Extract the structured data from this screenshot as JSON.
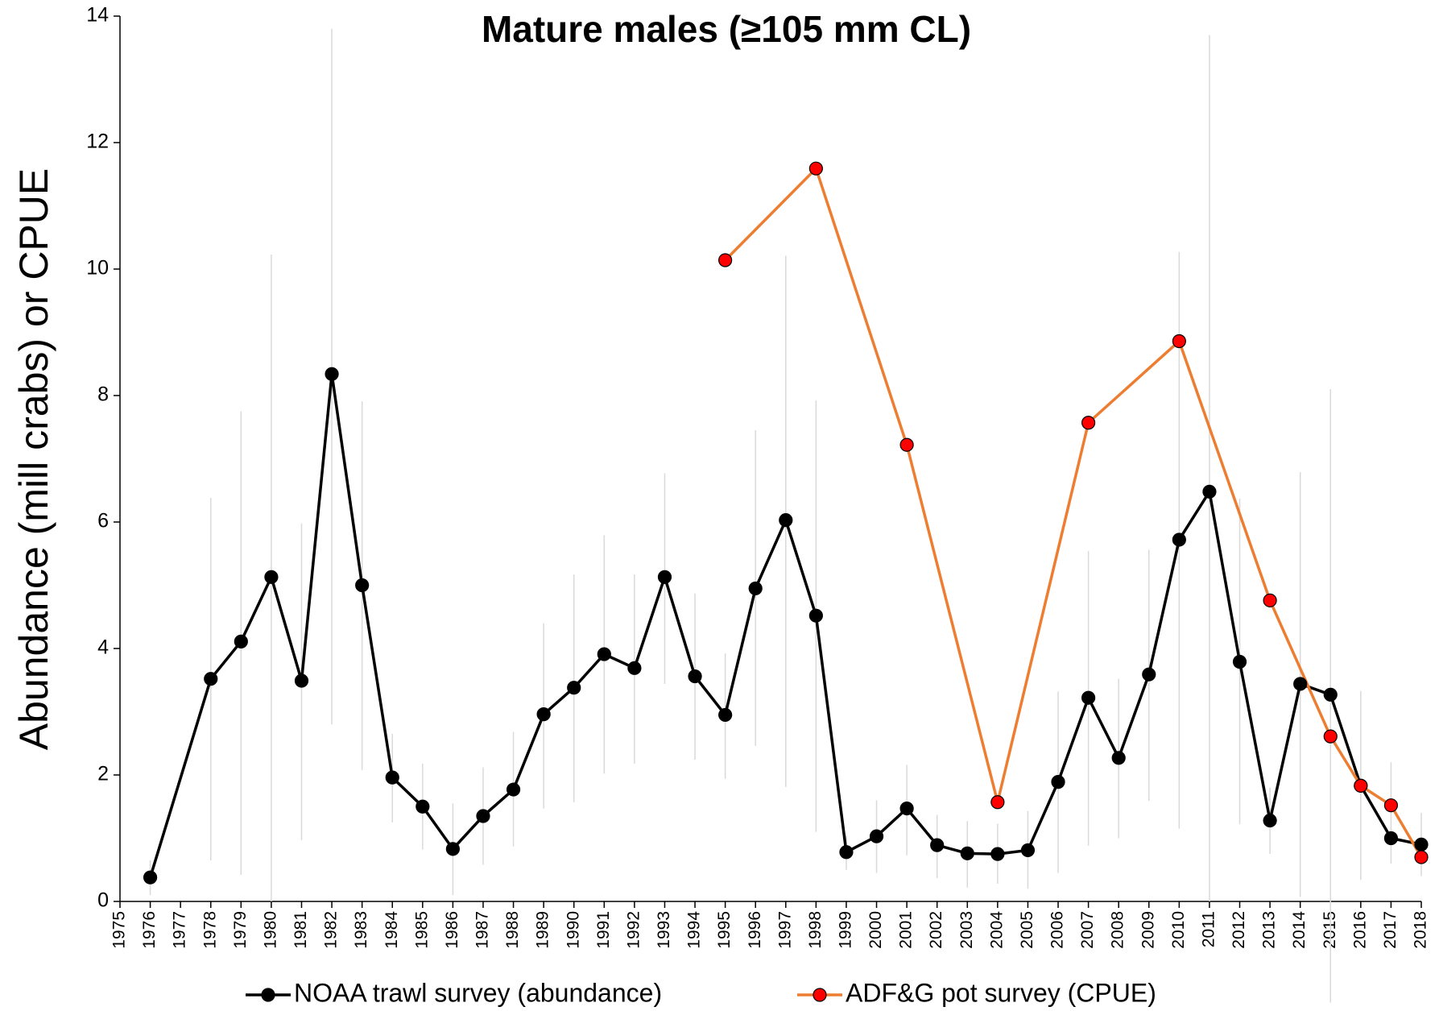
{
  "chart_data": {
    "type": "line",
    "title": "Mature males (≥105 mm CL)",
    "ylabel": "Abundance (mill crabs) or CPUE",
    "xlim": [
      1975,
      2018
    ],
    "xticks": [
      1975,
      1976,
      1977,
      1978,
      1979,
      1980,
      1981,
      1982,
      1983,
      1984,
      1985,
      1986,
      1987,
      1988,
      1989,
      1990,
      1991,
      1992,
      1993,
      1994,
      1995,
      1996,
      1997,
      1998,
      1999,
      2000,
      2001,
      2002,
      2003,
      2004,
      2005,
      2006,
      2007,
      2008,
      2009,
      2010,
      2011,
      2012,
      2013,
      2014,
      2015,
      2016,
      2017,
      2018
    ],
    "ylim": [
      0,
      14
    ],
    "yticks": [
      0,
      2,
      4,
      6,
      8,
      10,
      12,
      14
    ],
    "grid": false,
    "legend": "bottom",
    "series": [
      {
        "name": "NOAA trawl survey (abundance)",
        "color": "#000000",
        "marker_color": "#000000",
        "error_color": "#d9d9d9",
        "x": [
          1976,
          1978,
          1979,
          1980,
          1981,
          1982,
          1983,
          1984,
          1985,
          1986,
          1987,
          1988,
          1989,
          1990,
          1991,
          1992,
          1993,
          1994,
          1995,
          1996,
          1997,
          1998,
          1999,
          2000,
          2001,
          2002,
          2003,
          2004,
          2005,
          2006,
          2007,
          2008,
          2009,
          2010,
          2011,
          2012,
          2013,
          2014,
          2015,
          2016,
          2017,
          2018
        ],
        "values": [
          0.38,
          3.52,
          4.11,
          5.13,
          3.49,
          8.34,
          5.0,
          1.96,
          1.5,
          0.83,
          1.35,
          1.77,
          2.96,
          3.38,
          3.91,
          3.69,
          5.13,
          3.56,
          2.95,
          4.95,
          6.03,
          4.52,
          0.78,
          1.03,
          1.47,
          0.89,
          0.76,
          0.75,
          0.81,
          1.89,
          3.22,
          2.27,
          3.59,
          5.72,
          6.48,
          3.79,
          1.28,
          3.44,
          3.27,
          1.83,
          1.0,
          0.9
        ],
        "lower": [
          0.1,
          0.65,
          0.42,
          0,
          0.97,
          2.8,
          2.08,
          1.25,
          0.82,
          0.1,
          0.58,
          0.87,
          1.47,
          1.57,
          2.02,
          2.18,
          3.44,
          2.24,
          1.94,
          2.46,
          1.81,
          1.1,
          0.5,
          0.45,
          0.73,
          0.37,
          0.22,
          0.28,
          0.2,
          0.45,
          0.88,
          1.0,
          1.59,
          1.15,
          0,
          1.22,
          0.75,
          0.07,
          -1.6,
          0.34,
          0.6,
          0.4
        ],
        "upper": [
          0.65,
          6.38,
          7.75,
          10.23,
          5.98,
          13.8,
          7.91,
          2.65,
          2.18,
          1.55,
          2.12,
          2.68,
          4.4,
          5.17,
          5.79,
          5.17,
          6.77,
          4.87,
          3.92,
          7.45,
          10.21,
          7.92,
          1.05,
          1.6,
          2.16,
          1.37,
          1.27,
          1.23,
          1.43,
          3.32,
          5.54,
          3.52,
          5.56,
          10.27,
          13.7,
          6.37,
          1.8,
          6.79,
          8.1,
          3.33,
          2.2,
          1.4
        ]
      },
      {
        "name": "ADF&G pot survey (CPUE)",
        "color": "#ed7d31",
        "marker_color": "#ff0000",
        "x": [
          1995,
          1998,
          2001,
          2004,
          2007,
          2010,
          2013,
          2015,
          2016,
          2017,
          2018
        ],
        "values": [
          10.14,
          11.59,
          7.22,
          1.57,
          7.57,
          8.86,
          4.76,
          2.61,
          1.83,
          1.52,
          0.7
        ]
      }
    ]
  }
}
